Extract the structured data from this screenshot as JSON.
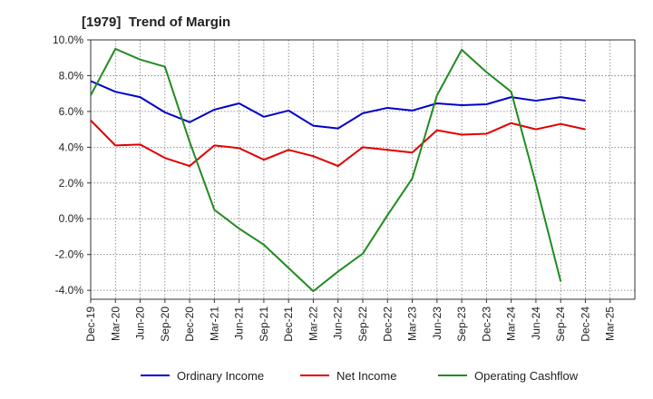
{
  "chart_data": {
    "type": "line",
    "title": "[1979]  Trend of Margin",
    "x": [
      "Dec-19",
      "Mar-20",
      "Jun-20",
      "Sep-20",
      "Dec-20",
      "Mar-21",
      "Jun-21",
      "Sep-21",
      "Dec-21",
      "Mar-22",
      "Jun-22",
      "Sep-22",
      "Dec-22",
      "Mar-23",
      "Jun-23",
      "Sep-23",
      "Dec-23",
      "Mar-24",
      "Jun-24",
      "Sep-24",
      "Dec-24",
      "Mar-25"
    ],
    "ylim": [
      -4.5,
      10.0
    ],
    "yticks": [
      10.0,
      8.0,
      6.0,
      4.0,
      2.0,
      0.0,
      -2.0,
      -4.0
    ],
    "ytick_labels": [
      "10.0%",
      "8.0%",
      "6.0%",
      "4.0%",
      "2.0%",
      "0.0%",
      "-2.0%",
      "-4.0%"
    ],
    "grid": true,
    "legend_position": "bottom",
    "series": [
      {
        "name": "Ordinary Income",
        "color": "#0000cc",
        "values": [
          7.7,
          7.1,
          6.8,
          5.95,
          5.4,
          6.1,
          6.45,
          5.7,
          6.05,
          5.2,
          5.05,
          5.9,
          6.2,
          6.05,
          6.45,
          6.35,
          6.4,
          6.8,
          6.6,
          6.8,
          6.6,
          null
        ]
      },
      {
        "name": "Net Income",
        "color": "#e00000",
        "values": [
          5.5,
          4.1,
          4.15,
          3.4,
          2.95,
          4.1,
          3.95,
          3.3,
          3.85,
          3.5,
          2.95,
          4.0,
          3.85,
          3.7,
          4.95,
          4.7,
          4.75,
          5.35,
          5.0,
          5.3,
          5.0,
          null
        ]
      },
      {
        "name": "Operating Cashflow",
        "color": "#228b22",
        "values": [
          6.9,
          9.5,
          8.9,
          8.5,
          4.3,
          0.5,
          -0.55,
          -1.45,
          -2.75,
          -4.05,
          -2.95,
          -1.95,
          0.2,
          2.25,
          6.9,
          9.45,
          8.2,
          7.1,
          1.95,
          -3.5,
          null,
          null
        ]
      }
    ]
  }
}
